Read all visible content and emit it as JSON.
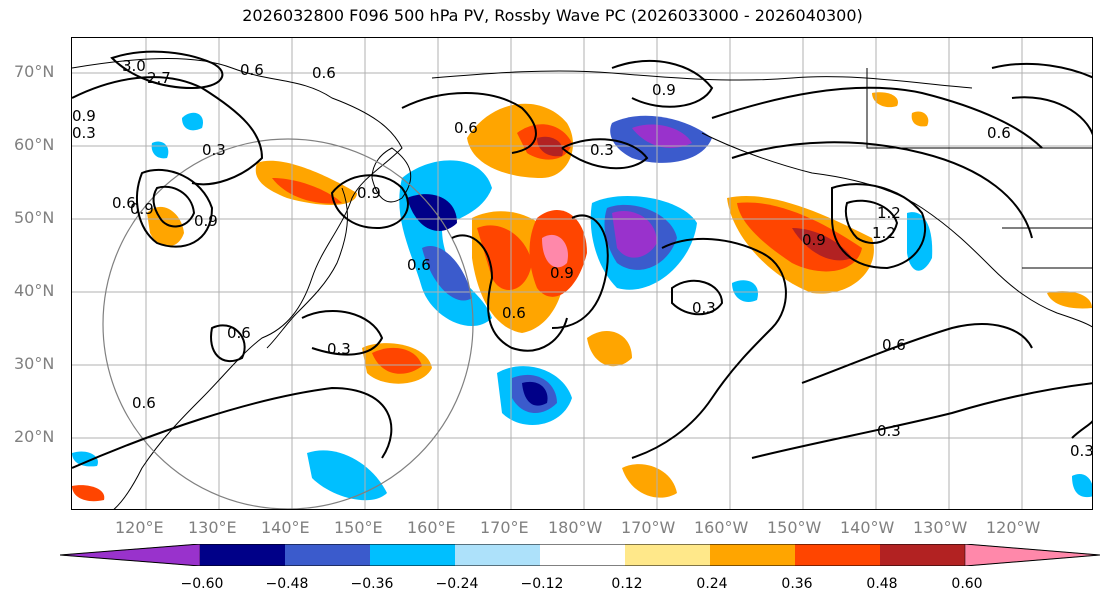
{
  "title": "2026032800 F096 500 hPa PV, Rossby Wave PC (2026033000 - 2026040300)",
  "lat_labels": [
    "70°N",
    "60°N",
    "50°N",
    "40°N",
    "30°N",
    "20°N"
  ],
  "lon_labels": [
    "120°E",
    "130°E",
    "140°E",
    "150°E",
    "160°E",
    "170°E",
    "180°W",
    "170°W",
    "160°W",
    "150°W",
    "140°W",
    "130°W",
    "120°W"
  ],
  "contour_labels": [
    "3.0",
    "2.7",
    "0.6",
    "0.9",
    "0.6",
    "0.3",
    "0.9",
    "0.6",
    "0.3",
    "0.9",
    "1.2",
    "0.6",
    "0.9",
    "0.6",
    "0.3",
    "0.6",
    "0.9",
    "0.9",
    "1.2",
    "0.6",
    "0.3",
    "0.9",
    "0.6",
    "0.6",
    "0.3",
    "0.6",
    "0.3",
    "0.3"
  ],
  "colorbar": {
    "labels": [
      "−0.60",
      "−0.48",
      "−0.36",
      "−0.24",
      "−0.12",
      "0.12",
      "0.24",
      "0.36",
      "0.48",
      "0.60"
    ],
    "colors": [
      "#9932CC",
      "#000088",
      "#3B5BCC",
      "#00BFFF",
      "#ADE1FA",
      "#FFFFFF",
      "#FFE88A",
      "#FFA500",
      "#FF4500",
      "#B22222",
      "#FF88AA"
    ]
  }
}
